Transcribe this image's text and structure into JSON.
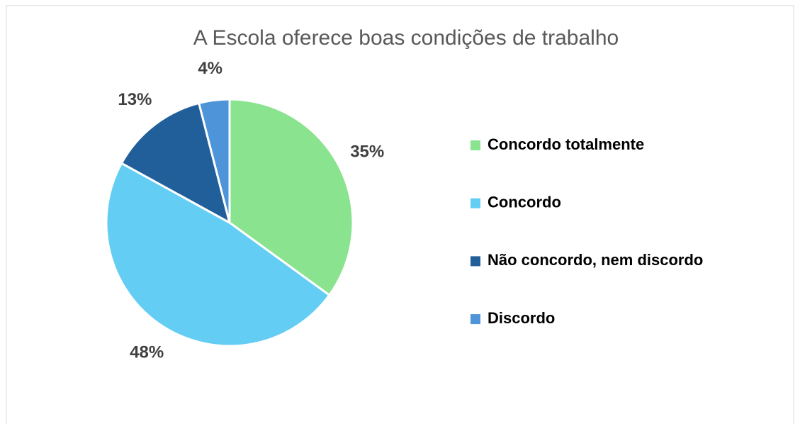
{
  "chart_data": {
    "type": "pie",
    "title": "A Escola oferece boas condições de trabalho",
    "categories": [
      "Concordo totalmente",
      "Concordo",
      "Não concordo, nem discordo",
      "Discordo"
    ],
    "values": [
      35,
      48,
      13,
      4
    ],
    "value_labels": [
      "35%",
      "48%",
      "13%",
      "4%"
    ],
    "colors": [
      "#8ae38f",
      "#64cdf4",
      "#215f9a",
      "#4d94d8"
    ],
    "legend": "right"
  }
}
